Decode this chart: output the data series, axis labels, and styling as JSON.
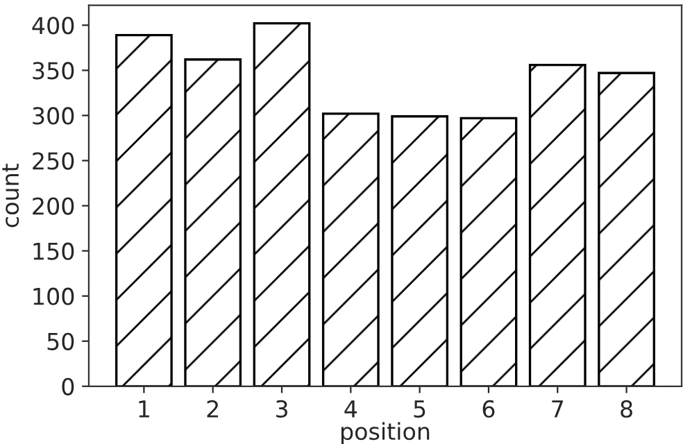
{
  "chart_data": {
    "type": "bar",
    "xlabel": "position",
    "ylabel": "count",
    "categories": [
      "1",
      "2",
      "3",
      "4",
      "5",
      "6",
      "7",
      "8"
    ],
    "values": [
      389,
      362,
      402,
      302,
      299,
      297,
      356,
      347
    ],
    "color": "#000000",
    "ylim": [
      0,
      422
    ],
    "yticks": [
      0,
      50,
      100,
      150,
      200,
      250,
      300,
      350,
      400
    ],
    "grid": false,
    "legend": false
  }
}
